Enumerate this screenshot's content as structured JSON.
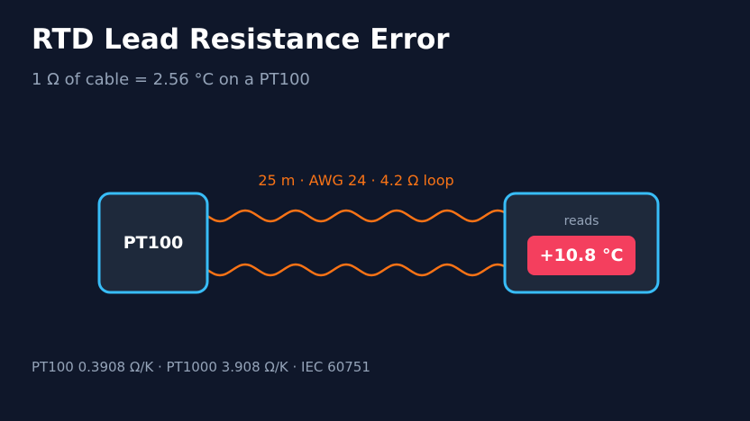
{
  "header": {
    "title": "RTD Lead Resistance Error",
    "subtitle": "1 Ω of cable = 2.56 °C on a PT100"
  },
  "diagram": {
    "sensor": "PT100",
    "cable_label": "25 m · AWG 24 · 4.2 Ω loop",
    "reader_label": "reads",
    "reading": "+10.8 °C"
  },
  "footer": "PT100 0.3908 Ω/K · PT1000 3.908 Ω/K · IEC 60751"
}
